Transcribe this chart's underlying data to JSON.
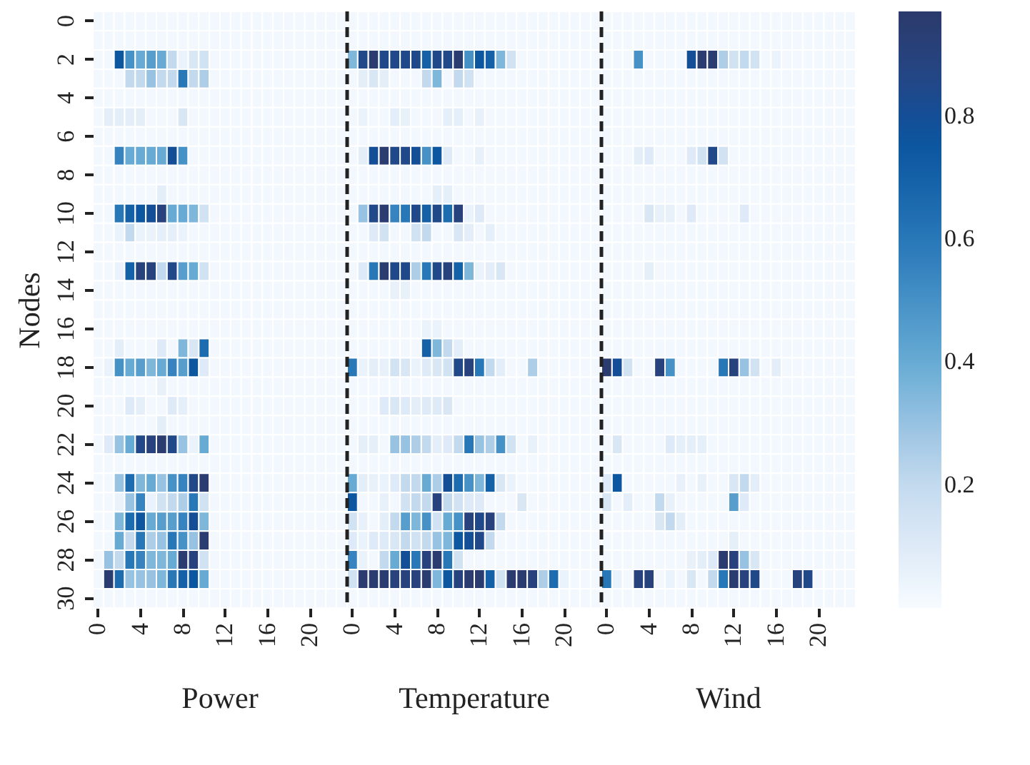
{
  "chart_data": {
    "type": "heatmap",
    "ylabel": "Nodes",
    "clim": [
      0,
      0.97
    ],
    "cticks": [
      0.2,
      0.4,
      0.6,
      0.8
    ],
    "annotations": [
      "Power",
      "Temperature",
      "Wind"
    ],
    "categories": [
      "0",
      null,
      null,
      null,
      "4",
      null,
      null,
      null,
      "8",
      null,
      null,
      null,
      "12",
      null,
      null,
      null,
      "16",
      null,
      null,
      null,
      "20",
      null,
      null,
      null,
      "0",
      null,
      null,
      null,
      "4",
      null,
      null,
      null,
      "8",
      null,
      null,
      null,
      "12",
      null,
      null,
      null,
      "16",
      null,
      null,
      null,
      "20",
      null,
      null,
      null,
      "0",
      null,
      null,
      null,
      "4",
      null,
      null,
      null,
      "8",
      null,
      null,
      null,
      "12",
      null,
      null,
      null,
      "16",
      null,
      null,
      null,
      "20",
      null,
      null,
      null
    ],
    "y_categories": [
      "0",
      null,
      "2",
      null,
      "4",
      null,
      "6",
      null,
      "8",
      null,
      "10",
      null,
      "12",
      null,
      "14",
      null,
      "16",
      null,
      "18",
      null,
      "20",
      null,
      "22",
      null,
      "24",
      null,
      "26",
      null,
      "28",
      null,
      "30"
    ],
    "cells": [
      [
        0.02,
        0.02,
        0.02,
        0.02,
        0.02,
        0.02,
        0.02,
        0.02,
        0.02,
        0.02,
        0.02,
        0.02,
        0.02,
        0.02,
        0.02,
        0.02,
        0.02,
        0.02,
        0.02,
        0.02,
        0.02,
        0.02,
        0.02,
        0.02,
        0.02,
        0.02,
        0.02,
        0.02,
        0.02,
        0.02,
        0.02,
        0.02,
        0.02,
        0.02,
        0.02,
        0.02,
        0.02,
        0.02,
        0.02,
        0.02,
        0.02,
        0.02,
        0.02,
        0.02,
        0.02,
        0.02,
        0.02,
        0.02,
        0.02,
        0.02,
        0.02,
        0.02,
        0.02,
        0.02,
        0.02,
        0.02,
        0.02,
        0.02,
        0.02,
        0.02,
        0.02,
        0.02,
        0.02,
        0.02,
        0.02,
        0.02,
        0.02,
        0.02,
        0.02,
        0.02,
        0.02,
        0.02
      ],
      [
        0.02,
        0.02,
        0.02,
        0.02,
        0.02,
        0.02,
        0.02,
        0.02,
        0.02,
        0.02,
        0.02,
        0.02,
        0.02,
        0.02,
        0.02,
        0.02,
        0.02,
        0.02,
        0.02,
        0.02,
        0.02,
        0.02,
        0.02,
        0.02,
        0.02,
        0.02,
        0.02,
        0.02,
        0.02,
        0.02,
        0.02,
        0.02,
        0.02,
        0.02,
        0.02,
        0.02,
        0.02,
        0.02,
        0.02,
        0.02,
        0.02,
        0.02,
        0.02,
        0.02,
        0.02,
        0.02,
        0.02,
        0.02,
        0.02,
        0.02,
        0.02,
        0.02,
        0.02,
        0.02,
        0.02,
        0.02,
        0.02,
        0.02,
        0.02,
        0.02,
        0.02,
        0.02,
        0.02,
        0.02,
        0.02,
        0.02,
        0.02,
        0.02,
        0.02,
        0.02,
        0.02,
        0.02
      ],
      [
        0.02,
        0.02,
        0.75,
        0.5,
        0.4,
        0.45,
        0.4,
        0.2,
        0.05,
        0.12,
        0.15,
        0.02,
        0.02,
        0.02,
        0.02,
        0.02,
        0.02,
        0.02,
        0.02,
        0.02,
        0.02,
        0.02,
        0.02,
        0.02,
        0.35,
        0.85,
        0.95,
        0.85,
        0.85,
        0.85,
        0.85,
        0.7,
        0.85,
        0.85,
        0.95,
        0.5,
        0.75,
        0.7,
        0.35,
        0.15,
        0.02,
        0.02,
        0.02,
        0.02,
        0.02,
        0.02,
        0.02,
        0.02,
        0.02,
        0.02,
        0.02,
        0.5,
        0.02,
        0.02,
        0.02,
        0.02,
        0.8,
        0.95,
        0.95,
        0.25,
        0.15,
        0.2,
        0.15,
        0.02,
        0.05,
        0.02,
        0.02,
        0.02,
        0.02,
        0.02,
        0.02,
        0.02
      ],
      [
        0.02,
        0.02,
        0.02,
        0.2,
        0.2,
        0.3,
        0.2,
        0.2,
        0.6,
        0.2,
        0.25,
        0.02,
        0.02,
        0.02,
        0.02,
        0.02,
        0.02,
        0.02,
        0.02,
        0.02,
        0.02,
        0.02,
        0.02,
        0.02,
        0.02,
        0.08,
        0.12,
        0.08,
        0.02,
        0.02,
        0.02,
        0.2,
        0.35,
        0.02,
        0.2,
        0.15,
        0.02,
        0.02,
        0.02,
        0.02,
        0.02,
        0.02,
        0.02,
        0.02,
        0.02,
        0.02,
        0.02,
        0.02,
        0.02,
        0.02,
        0.02,
        0.02,
        0.02,
        0.02,
        0.02,
        0.02,
        0.02,
        0.02,
        0.02,
        0.02,
        0.02,
        0.02,
        0.02,
        0.02,
        0.02,
        0.02,
        0.02,
        0.02,
        0.02,
        0.02,
        0.02,
        0.02
      ],
      [
        0.02,
        0.02,
        0.02,
        0.02,
        0.02,
        0.02,
        0.02,
        0.02,
        0.02,
        0.02,
        0.02,
        0.02,
        0.02,
        0.02,
        0.02,
        0.02,
        0.02,
        0.02,
        0.02,
        0.02,
        0.02,
        0.02,
        0.02,
        0.02,
        0.02,
        0.02,
        0.02,
        0.02,
        0.02,
        0.02,
        0.02,
        0.02,
        0.02,
        0.02,
        0.02,
        0.02,
        0.02,
        0.02,
        0.02,
        0.02,
        0.02,
        0.02,
        0.02,
        0.02,
        0.02,
        0.02,
        0.02,
        0.02,
        0.02,
        0.02,
        0.02,
        0.02,
        0.02,
        0.02,
        0.02,
        0.02,
        0.02,
        0.02,
        0.02,
        0.02,
        0.02,
        0.02,
        0.02,
        0.02,
        0.02,
        0.02,
        0.02,
        0.02,
        0.02,
        0.02,
        0.02,
        0.02
      ],
      [
        0.02,
        0.08,
        0.08,
        0.08,
        0.08,
        0.02,
        0.02,
        0.02,
        0.12,
        0.02,
        0.02,
        0.02,
        0.02,
        0.02,
        0.02,
        0.02,
        0.02,
        0.02,
        0.02,
        0.02,
        0.02,
        0.02,
        0.02,
        0.02,
        0.02,
        0.05,
        0.02,
        0.02,
        0.08,
        0.06,
        0.02,
        0.02,
        0.02,
        0.07,
        0.07,
        0.02,
        0.06,
        0.02,
        0.02,
        0.02,
        0.02,
        0.02,
        0.02,
        0.02,
        0.02,
        0.02,
        0.02,
        0.02,
        0.02,
        0.02,
        0.02,
        0.02,
        0.02,
        0.02,
        0.02,
        0.02,
        0.02,
        0.02,
        0.02,
        0.02,
        0.02,
        0.02,
        0.02,
        0.02,
        0.02,
        0.02,
        0.02,
        0.02,
        0.02,
        0.02,
        0.02,
        0.02
      ],
      [
        0.02,
        0.02,
        0.02,
        0.02,
        0.02,
        0.02,
        0.02,
        0.02,
        0.02,
        0.02,
        0.02,
        0.02,
        0.02,
        0.02,
        0.02,
        0.02,
        0.02,
        0.02,
        0.02,
        0.02,
        0.02,
        0.02,
        0.02,
        0.02,
        0.02,
        0.02,
        0.02,
        0.02,
        0.02,
        0.02,
        0.02,
        0.02,
        0.02,
        0.02,
        0.02,
        0.02,
        0.02,
        0.02,
        0.02,
        0.02,
        0.02,
        0.02,
        0.02,
        0.02,
        0.02,
        0.02,
        0.02,
        0.02,
        0.02,
        0.02,
        0.02,
        0.02,
        0.02,
        0.02,
        0.02,
        0.02,
        0.02,
        0.02,
        0.02,
        0.02,
        0.02,
        0.02,
        0.02,
        0.02,
        0.02,
        0.02,
        0.02,
        0.02,
        0.02,
        0.02,
        0.02,
        0.02
      ],
      [
        0.02,
        0.02,
        0.55,
        0.4,
        0.4,
        0.4,
        0.4,
        0.8,
        0.5,
        0.02,
        0.02,
        0.02,
        0.02,
        0.02,
        0.02,
        0.02,
        0.02,
        0.02,
        0.02,
        0.02,
        0.02,
        0.02,
        0.02,
        0.02,
        0.02,
        0.08,
        0.8,
        0.95,
        0.85,
        0.85,
        0.8,
        0.5,
        0.75,
        0.1,
        0.02,
        0.02,
        0.06,
        0.02,
        0.02,
        0.02,
        0.02,
        0.02,
        0.02,
        0.02,
        0.02,
        0.02,
        0.02,
        0.02,
        0.02,
        0.02,
        0.02,
        0.08,
        0.1,
        0.02,
        0.02,
        0.02,
        0.1,
        0.15,
        0.85,
        0.15,
        0.02,
        0.02,
        0.02,
        0.02,
        0.02,
        0.02,
        0.02,
        0.02,
        0.02,
        0.02,
        0.02,
        0.02
      ],
      [
        0.02,
        0.02,
        0.02,
        0.02,
        0.02,
        0.02,
        0.02,
        0.02,
        0.02,
        0.02,
        0.02,
        0.02,
        0.02,
        0.02,
        0.02,
        0.02,
        0.02,
        0.02,
        0.02,
        0.02,
        0.02,
        0.02,
        0.02,
        0.02,
        0.02,
        0.02,
        0.02,
        0.02,
        0.02,
        0.02,
        0.02,
        0.02,
        0.02,
        0.02,
        0.02,
        0.02,
        0.02,
        0.02,
        0.02,
        0.02,
        0.02,
        0.02,
        0.02,
        0.02,
        0.02,
        0.02,
        0.02,
        0.02,
        0.02,
        0.02,
        0.02,
        0.02,
        0.02,
        0.02,
        0.02,
        0.02,
        0.02,
        0.02,
        0.02,
        0.02,
        0.02,
        0.02,
        0.02,
        0.02,
        0.02,
        0.02,
        0.02,
        0.02,
        0.02,
        0.02,
        0.02,
        0.02
      ],
      [
        0.02,
        0.02,
        0.02,
        0.02,
        0.02,
        0.02,
        0.08,
        0.02,
        0.02,
        0.02,
        0.02,
        0.02,
        0.02,
        0.02,
        0.02,
        0.02,
        0.02,
        0.02,
        0.02,
        0.02,
        0.02,
        0.02,
        0.02,
        0.02,
        0.02,
        0.02,
        0.02,
        0.02,
        0.02,
        0.02,
        0.02,
        0.02,
        0.07,
        0.07,
        0.02,
        0.02,
        0.02,
        0.02,
        0.02,
        0.02,
        0.02,
        0.02,
        0.02,
        0.02,
        0.02,
        0.02,
        0.02,
        0.02,
        0.02,
        0.02,
        0.02,
        0.02,
        0.02,
        0.02,
        0.02,
        0.02,
        0.02,
        0.02,
        0.02,
        0.02,
        0.02,
        0.02,
        0.02,
        0.02,
        0.02,
        0.02,
        0.02,
        0.02,
        0.02,
        0.02,
        0.02,
        0.02
      ],
      [
        0.02,
        0.02,
        0.6,
        0.7,
        0.75,
        0.8,
        0.9,
        0.4,
        0.4,
        0.35,
        0.15,
        0.02,
        0.02,
        0.02,
        0.02,
        0.02,
        0.02,
        0.02,
        0.02,
        0.02,
        0.02,
        0.02,
        0.02,
        0.02,
        0.02,
        0.3,
        0.85,
        0.95,
        0.55,
        0.6,
        0.85,
        0.7,
        0.85,
        0.65,
        0.9,
        0.05,
        0.1,
        0.02,
        0.02,
        0.02,
        0.02,
        0.02,
        0.02,
        0.02,
        0.02,
        0.02,
        0.02,
        0.02,
        0.02,
        0.02,
        0.02,
        0.02,
        0.12,
        0.06,
        0.06,
        0.02,
        0.1,
        0.02,
        0.02,
        0.02,
        0.02,
        0.1,
        0.02,
        0.02,
        0.02,
        0.02,
        0.02,
        0.02,
        0.02,
        0.02,
        0.02,
        0.02
      ],
      [
        0.02,
        0.02,
        0.05,
        0.2,
        0.05,
        0.05,
        0.07,
        0.07,
        0.05,
        0.02,
        0.02,
        0.02,
        0.02,
        0.02,
        0.02,
        0.02,
        0.02,
        0.02,
        0.02,
        0.02,
        0.02,
        0.02,
        0.02,
        0.02,
        0.02,
        0.02,
        0.1,
        0.15,
        0.02,
        0.02,
        0.15,
        0.2,
        0.02,
        0.02,
        0.12,
        0.08,
        0.02,
        0.07,
        0.02,
        0.02,
        0.02,
        0.02,
        0.02,
        0.02,
        0.02,
        0.02,
        0.02,
        0.02,
        0.02,
        0.02,
        0.02,
        0.02,
        0.02,
        0.02,
        0.02,
        0.02,
        0.02,
        0.02,
        0.02,
        0.02,
        0.02,
        0.02,
        0.02,
        0.02,
        0.02,
        0.02,
        0.02,
        0.02,
        0.02,
        0.02,
        0.02,
        0.02
      ],
      [
        0.02,
        0.02,
        0.02,
        0.02,
        0.02,
        0.02,
        0.02,
        0.02,
        0.02,
        0.02,
        0.02,
        0.02,
        0.02,
        0.02,
        0.02,
        0.02,
        0.02,
        0.02,
        0.02,
        0.02,
        0.02,
        0.02,
        0.02,
        0.02,
        0.02,
        0.02,
        0.02,
        0.02,
        0.02,
        0.02,
        0.02,
        0.02,
        0.02,
        0.02,
        0.02,
        0.02,
        0.02,
        0.02,
        0.02,
        0.02,
        0.02,
        0.02,
        0.02,
        0.02,
        0.02,
        0.02,
        0.02,
        0.02,
        0.02,
        0.02,
        0.02,
        0.02,
        0.02,
        0.02,
        0.02,
        0.02,
        0.02,
        0.02,
        0.02,
        0.02,
        0.02,
        0.02,
        0.02,
        0.02,
        0.02,
        0.02,
        0.02,
        0.02,
        0.02,
        0.02,
        0.02,
        0.02
      ],
      [
        0.02,
        0.02,
        0.05,
        0.7,
        0.9,
        0.9,
        0.2,
        0.85,
        0.45,
        0.4,
        0.15,
        0.02,
        0.02,
        0.02,
        0.02,
        0.02,
        0.02,
        0.02,
        0.02,
        0.02,
        0.02,
        0.02,
        0.02,
        0.02,
        0.02,
        0.1,
        0.6,
        0.95,
        0.85,
        0.85,
        0.25,
        0.6,
        0.85,
        0.9,
        0.7,
        0.35,
        0.05,
        0.08,
        0.12,
        0.02,
        0.02,
        0.02,
        0.02,
        0.02,
        0.02,
        0.02,
        0.02,
        0.02,
        0.02,
        0.02,
        0.02,
        0.02,
        0.07,
        0.02,
        0.02,
        0.02,
        0.02,
        0.02,
        0.02,
        0.02,
        0.02,
        0.02,
        0.02,
        0.02,
        0.02,
        0.02,
        0.02,
        0.02,
        0.02,
        0.02,
        0.02,
        0.02
      ],
      [
        0.02,
        0.02,
        0.02,
        0.02,
        0.02,
        0.02,
        0.02,
        0.02,
        0.02,
        0.02,
        0.02,
        0.02,
        0.02,
        0.02,
        0.02,
        0.02,
        0.02,
        0.02,
        0.02,
        0.02,
        0.02,
        0.02,
        0.02,
        0.02,
        0.02,
        0.02,
        0.02,
        0.02,
        0.06,
        0.06,
        0.02,
        0.02,
        0.02,
        0.02,
        0.02,
        0.02,
        0.02,
        0.02,
        0.02,
        0.02,
        0.02,
        0.02,
        0.02,
        0.02,
        0.02,
        0.02,
        0.02,
        0.02,
        0.02,
        0.02,
        0.02,
        0.02,
        0.02,
        0.02,
        0.02,
        0.02,
        0.02,
        0.02,
        0.02,
        0.02,
        0.02,
        0.02,
        0.02,
        0.02,
        0.02,
        0.02,
        0.02,
        0.02,
        0.02,
        0.02,
        0.02,
        0.02
      ],
      [
        0.02,
        0.02,
        0.02,
        0.02,
        0.02,
        0.02,
        0.02,
        0.02,
        0.02,
        0.02,
        0.02,
        0.02,
        0.02,
        0.02,
        0.02,
        0.02,
        0.02,
        0.02,
        0.02,
        0.02,
        0.02,
        0.02,
        0.02,
        0.02,
        0.02,
        0.02,
        0.02,
        0.02,
        0.02,
        0.02,
        0.02,
        0.02,
        0.02,
        0.02,
        0.02,
        0.02,
        0.02,
        0.02,
        0.02,
        0.02,
        0.02,
        0.02,
        0.02,
        0.02,
        0.02,
        0.02,
        0.02,
        0.02,
        0.02,
        0.02,
        0.02,
        0.02,
        0.02,
        0.02,
        0.02,
        0.02,
        0.02,
        0.02,
        0.02,
        0.02,
        0.02,
        0.02,
        0.02,
        0.02,
        0.02,
        0.02,
        0.02,
        0.02,
        0.02,
        0.02,
        0.02,
        0.02
      ],
      [
        0.02,
        0.02,
        0.02,
        0.02,
        0.02,
        0.02,
        0.02,
        0.02,
        0.02,
        0.02,
        0.02,
        0.02,
        0.02,
        0.02,
        0.02,
        0.02,
        0.02,
        0.02,
        0.02,
        0.02,
        0.02,
        0.02,
        0.02,
        0.02,
        0.02,
        0.02,
        0.02,
        0.02,
        0.02,
        0.02,
        0.02,
        0.05,
        0.05,
        0.02,
        0.02,
        0.02,
        0.02,
        0.02,
        0.02,
        0.02,
        0.02,
        0.02,
        0.02,
        0.02,
        0.02,
        0.02,
        0.02,
        0.02,
        0.02,
        0.02,
        0.02,
        0.02,
        0.02,
        0.02,
        0.02,
        0.02,
        0.02,
        0.02,
        0.02,
        0.02,
        0.02,
        0.02,
        0.02,
        0.02,
        0.02,
        0.02,
        0.02,
        0.02,
        0.02,
        0.02,
        0.02,
        0.02
      ],
      [
        0.02,
        0.02,
        0.08,
        0.02,
        0.02,
        0.02,
        0.1,
        0.02,
        0.35,
        0.12,
        0.65,
        0.02,
        0.02,
        0.02,
        0.02,
        0.02,
        0.02,
        0.02,
        0.02,
        0.02,
        0.02,
        0.02,
        0.02,
        0.02,
        0.02,
        0.02,
        0.02,
        0.02,
        0.02,
        0.02,
        0.02,
        0.7,
        0.35,
        0.2,
        0.08,
        0.02,
        0.02,
        0.02,
        0.02,
        0.02,
        0.02,
        0.02,
        0.02,
        0.02,
        0.02,
        0.02,
        0.02,
        0.02,
        0.02,
        0.02,
        0.02,
        0.02,
        0.02,
        0.02,
        0.02,
        0.02,
        0.02,
        0.02,
        0.02,
        0.02,
        0.02,
        0.02,
        0.02,
        0.02,
        0.02,
        0.02,
        0.02,
        0.02,
        0.02,
        0.02,
        0.02,
        0.02
      ],
      [
        0.02,
        0.05,
        0.5,
        0.4,
        0.45,
        0.35,
        0.4,
        0.55,
        0.45,
        0.75,
        0.1,
        0.02,
        0.02,
        0.02,
        0.02,
        0.02,
        0.02,
        0.02,
        0.02,
        0.02,
        0.02,
        0.02,
        0.02,
        0.02,
        0.6,
        0.05,
        0.08,
        0.06,
        0.15,
        0.12,
        0.05,
        0.1,
        0.12,
        0.15,
        0.85,
        0.9,
        0.6,
        0.2,
        0.08,
        0.02,
        0.02,
        0.25,
        0.02,
        0.02,
        0.02,
        0.02,
        0.02,
        0.02,
        0.95,
        0.8,
        0.15,
        0.02,
        0.02,
        0.9,
        0.5,
        0.02,
        0.02,
        0.02,
        0.02,
        0.6,
        0.9,
        0.3,
        0.15,
        0.02,
        0.08,
        0.02,
        0.02,
        0.02,
        0.02,
        0.02,
        0.02,
        0.02
      ],
      [
        0.02,
        0.02,
        0.02,
        0.02,
        0.02,
        0.02,
        0.06,
        0.02,
        0.02,
        0.02,
        0.02,
        0.02,
        0.02,
        0.02,
        0.02,
        0.02,
        0.02,
        0.02,
        0.02,
        0.02,
        0.02,
        0.02,
        0.02,
        0.02,
        0.02,
        0.02,
        0.02,
        0.02,
        0.02,
        0.02,
        0.02,
        0.02,
        0.02,
        0.02,
        0.02,
        0.02,
        0.02,
        0.02,
        0.02,
        0.02,
        0.02,
        0.02,
        0.02,
        0.02,
        0.02,
        0.02,
        0.02,
        0.02,
        0.02,
        0.02,
        0.02,
        0.02,
        0.02,
        0.02,
        0.02,
        0.02,
        0.02,
        0.02,
        0.02,
        0.02,
        0.02,
        0.02,
        0.02,
        0.02,
        0.02,
        0.02,
        0.02,
        0.02,
        0.02,
        0.02,
        0.02,
        0.02
      ],
      [
        0.02,
        0.02,
        0.02,
        0.1,
        0.07,
        0.02,
        0.02,
        0.1,
        0.07,
        0.02,
        0.02,
        0.02,
        0.02,
        0.02,
        0.02,
        0.02,
        0.02,
        0.02,
        0.02,
        0.02,
        0.02,
        0.02,
        0.02,
        0.02,
        0.02,
        0.02,
        0.02,
        0.1,
        0.12,
        0.1,
        0.08,
        0.1,
        0.1,
        0.12,
        0.02,
        0.02,
        0.02,
        0.02,
        0.02,
        0.02,
        0.02,
        0.02,
        0.02,
        0.02,
        0.02,
        0.02,
        0.02,
        0.02,
        0.02,
        0.02,
        0.02,
        0.02,
        0.02,
        0.02,
        0.02,
        0.02,
        0.02,
        0.02,
        0.02,
        0.02,
        0.02,
        0.02,
        0.02,
        0.02,
        0.02,
        0.02,
        0.02,
        0.02,
        0.02,
        0.02,
        0.02,
        0.02
      ],
      [
        0.02,
        0.02,
        0.02,
        0.02,
        0.02,
        0.02,
        0.08,
        0.02,
        0.02,
        0.02,
        0.02,
        0.02,
        0.02,
        0.02,
        0.02,
        0.02,
        0.02,
        0.02,
        0.02,
        0.02,
        0.02,
        0.02,
        0.02,
        0.02,
        0.02,
        0.02,
        0.02,
        0.02,
        0.02,
        0.02,
        0.02,
        0.02,
        0.02,
        0.02,
        0.02,
        0.02,
        0.02,
        0.02,
        0.02,
        0.02,
        0.02,
        0.02,
        0.02,
        0.02,
        0.02,
        0.02,
        0.02,
        0.02,
        0.02,
        0.02,
        0.02,
        0.02,
        0.02,
        0.02,
        0.02,
        0.02,
        0.02,
        0.02,
        0.02,
        0.02,
        0.02,
        0.02,
        0.02,
        0.02,
        0.02,
        0.02,
        0.02,
        0.02,
        0.02,
        0.02,
        0.02,
        0.02
      ],
      [
        0.02,
        0.1,
        0.3,
        0.4,
        0.85,
        0.9,
        0.95,
        0.85,
        0.3,
        0.05,
        0.4,
        0.02,
        0.02,
        0.02,
        0.02,
        0.02,
        0.02,
        0.02,
        0.02,
        0.02,
        0.02,
        0.02,
        0.02,
        0.02,
        0.02,
        0.07,
        0.07,
        0.02,
        0.3,
        0.3,
        0.25,
        0.2,
        0.08,
        0.1,
        0.2,
        0.6,
        0.3,
        0.25,
        0.5,
        0.15,
        0.02,
        0.06,
        0.02,
        0.02,
        0.02,
        0.02,
        0.02,
        0.02,
        0.02,
        0.12,
        0.02,
        0.02,
        0.02,
        0.02,
        0.1,
        0.07,
        0.07,
        0.07,
        0.02,
        0.02,
        0.02,
        0.02,
        0.02,
        0.02,
        0.02,
        0.02,
        0.02,
        0.02,
        0.02,
        0.02,
        0.02,
        0.02
      ],
      [
        0.02,
        0.02,
        0.02,
        0.02,
        0.02,
        0.02,
        0.02,
        0.02,
        0.02,
        0.02,
        0.02,
        0.02,
        0.02,
        0.02,
        0.02,
        0.02,
        0.02,
        0.02,
        0.02,
        0.02,
        0.02,
        0.02,
        0.02,
        0.02,
        0.02,
        0.02,
        0.02,
        0.02,
        0.02,
        0.02,
        0.02,
        0.02,
        0.02,
        0.02,
        0.02,
        0.02,
        0.02,
        0.02,
        0.02,
        0.02,
        0.02,
        0.02,
        0.02,
        0.02,
        0.02,
        0.02,
        0.02,
        0.02,
        0.02,
        0.02,
        0.02,
        0.02,
        0.02,
        0.02,
        0.02,
        0.02,
        0.02,
        0.02,
        0.02,
        0.02,
        0.02,
        0.02,
        0.02,
        0.02,
        0.02,
        0.02,
        0.02,
        0.02,
        0.02,
        0.02,
        0.02,
        0.02
      ],
      [
        0.02,
        0.02,
        0.3,
        0.65,
        0.35,
        0.4,
        0.3,
        0.5,
        0.55,
        0.85,
        0.95,
        0.02,
        0.02,
        0.02,
        0.02,
        0.02,
        0.02,
        0.02,
        0.02,
        0.02,
        0.02,
        0.02,
        0.02,
        0.02,
        0.4,
        0.08,
        0.06,
        0.05,
        0.1,
        0.2,
        0.2,
        0.4,
        0.25,
        0.8,
        0.65,
        0.5,
        0.35,
        0.7,
        0.12,
        0.05,
        0.02,
        0.02,
        0.02,
        0.02,
        0.02,
        0.02,
        0.02,
        0.02,
        0.1,
        0.75,
        0.02,
        0.02,
        0.02,
        0.02,
        0.02,
        0.06,
        0.02,
        0.06,
        0.02,
        0.02,
        0.12,
        0.2,
        0.08,
        0.02,
        0.02,
        0.02,
        0.02,
        0.02,
        0.02,
        0.02,
        0.02,
        0.02
      ],
      [
        0.02,
        0.02,
        0.05,
        0.3,
        0.55,
        0.05,
        0.15,
        0.2,
        0.25,
        0.6,
        0.15,
        0.02,
        0.02,
        0.02,
        0.02,
        0.02,
        0.02,
        0.02,
        0.02,
        0.02,
        0.02,
        0.02,
        0.02,
        0.02,
        0.75,
        0.02,
        0.02,
        0.06,
        0.02,
        0.15,
        0.2,
        0.2,
        0.9,
        0.2,
        0.15,
        0.1,
        0.1,
        0.02,
        0.02,
        0.02,
        0.12,
        0.02,
        0.02,
        0.02,
        0.02,
        0.02,
        0.02,
        0.02,
        0.12,
        0.02,
        0.08,
        0.02,
        0.02,
        0.2,
        0.06,
        0.02,
        0.02,
        0.02,
        0.02,
        0.02,
        0.45,
        0.1,
        0.02,
        0.02,
        0.02,
        0.02,
        0.02,
        0.02,
        0.02,
        0.02,
        0.02,
        0.02
      ],
      [
        0.02,
        0.02,
        0.35,
        0.65,
        0.75,
        0.4,
        0.45,
        0.45,
        0.55,
        0.8,
        0.35,
        0.02,
        0.02,
        0.02,
        0.02,
        0.02,
        0.02,
        0.02,
        0.02,
        0.02,
        0.02,
        0.02,
        0.02,
        0.02,
        0.15,
        0.06,
        0.02,
        0.08,
        0.2,
        0.45,
        0.35,
        0.5,
        0.15,
        0.4,
        0.5,
        0.9,
        0.85,
        0.9,
        0.2,
        0.02,
        0.02,
        0.02,
        0.02,
        0.02,
        0.02,
        0.02,
        0.02,
        0.02,
        0.02,
        0.02,
        0.02,
        0.02,
        0.02,
        0.12,
        0.2,
        0.08,
        0.02,
        0.02,
        0.02,
        0.02,
        0.02,
        0.02,
        0.02,
        0.02,
        0.02,
        0.02,
        0.02,
        0.02,
        0.02,
        0.02,
        0.02,
        0.02
      ],
      [
        0.02,
        0.02,
        0.4,
        0.2,
        0.6,
        0.25,
        0.3,
        0.6,
        0.5,
        0.3,
        0.95,
        0.02,
        0.02,
        0.02,
        0.02,
        0.02,
        0.02,
        0.02,
        0.02,
        0.02,
        0.02,
        0.02,
        0.02,
        0.02,
        0.1,
        0.05,
        0.1,
        0.1,
        0.12,
        0.2,
        0.15,
        0.2,
        0.3,
        0.35,
        0.75,
        0.8,
        0.85,
        0.2,
        0.02,
        0.02,
        0.02,
        0.02,
        0.02,
        0.02,
        0.02,
        0.02,
        0.02,
        0.02,
        0.02,
        0.02,
        0.02,
        0.02,
        0.02,
        0.02,
        0.02,
        0.02,
        0.02,
        0.02,
        0.02,
        0.02,
        0.07,
        0.02,
        0.02,
        0.02,
        0.02,
        0.02,
        0.02,
        0.02,
        0.02,
        0.02,
        0.02,
        0.02
      ],
      [
        0.02,
        0.3,
        0.2,
        0.6,
        0.55,
        0.35,
        0.35,
        0.4,
        0.95,
        0.9,
        0.15,
        0.02,
        0.02,
        0.02,
        0.02,
        0.02,
        0.02,
        0.02,
        0.02,
        0.02,
        0.02,
        0.02,
        0.02,
        0.02,
        0.55,
        0.05,
        0.02,
        0.2,
        0.4,
        0.8,
        0.6,
        0.9,
        0.95,
        0.6,
        0.15,
        0.02,
        0.02,
        0.02,
        0.02,
        0.02,
        0.02,
        0.02,
        0.02,
        0.02,
        0.02,
        0.02,
        0.02,
        0.02,
        0.02,
        0.02,
        0.02,
        0.02,
        0.02,
        0.02,
        0.02,
        0.02,
        0.06,
        0.08,
        0.1,
        0.95,
        0.9,
        0.3,
        0.12,
        0.02,
        0.02,
        0.02,
        0.02,
        0.02,
        0.02,
        0.02,
        0.02,
        0.02
      ],
      [
        0.02,
        0.95,
        0.65,
        0.3,
        0.3,
        0.3,
        0.35,
        0.6,
        0.7,
        0.75,
        0.4,
        0.02,
        0.02,
        0.02,
        0.02,
        0.02,
        0.02,
        0.02,
        0.02,
        0.02,
        0.02,
        0.02,
        0.02,
        0.02,
        0.15,
        0.95,
        0.95,
        0.95,
        0.9,
        0.9,
        0.9,
        0.95,
        0.35,
        0.75,
        0.9,
        0.95,
        0.95,
        0.7,
        0.15,
        0.95,
        0.95,
        0.9,
        0.25,
        0.65,
        0.05,
        0.02,
        0.02,
        0.02,
        0.6,
        0.05,
        0.02,
        0.9,
        0.9,
        0.02,
        0.05,
        0.02,
        0.12,
        0.02,
        0.2,
        0.6,
        0.95,
        0.9,
        0.85,
        0.02,
        0.02,
        0.02,
        0.9,
        0.85,
        0.02,
        0.02,
        0.02,
        0.02
      ],
      [
        0.02,
        0.02,
        0.02,
        0.02,
        0.02,
        0.02,
        0.02,
        0.02,
        0.02,
        0.02,
        0.02,
        0.02,
        0.02,
        0.02,
        0.02,
        0.02,
        0.02,
        0.02,
        0.02,
        0.02,
        0.02,
        0.02,
        0.02,
        0.02,
        0.02,
        0.02,
        0.02,
        0.02,
        0.02,
        0.02,
        0.02,
        0.02,
        0.02,
        0.02,
        0.02,
        0.02,
        0.02,
        0.02,
        0.02,
        0.02,
        0.02,
        0.02,
        0.02,
        0.02,
        0.02,
        0.02,
        0.02,
        0.02,
        0.02,
        0.02,
        0.02,
        0.02,
        0.02,
        0.02,
        0.02,
        0.02,
        0.02,
        0.02,
        0.02,
        0.02,
        0.02,
        0.02,
        0.02,
        0.02,
        0.02,
        0.02,
        0.02,
        0.02,
        0.02,
        0.02,
        0.02,
        0.02
      ]
    ]
  }
}
